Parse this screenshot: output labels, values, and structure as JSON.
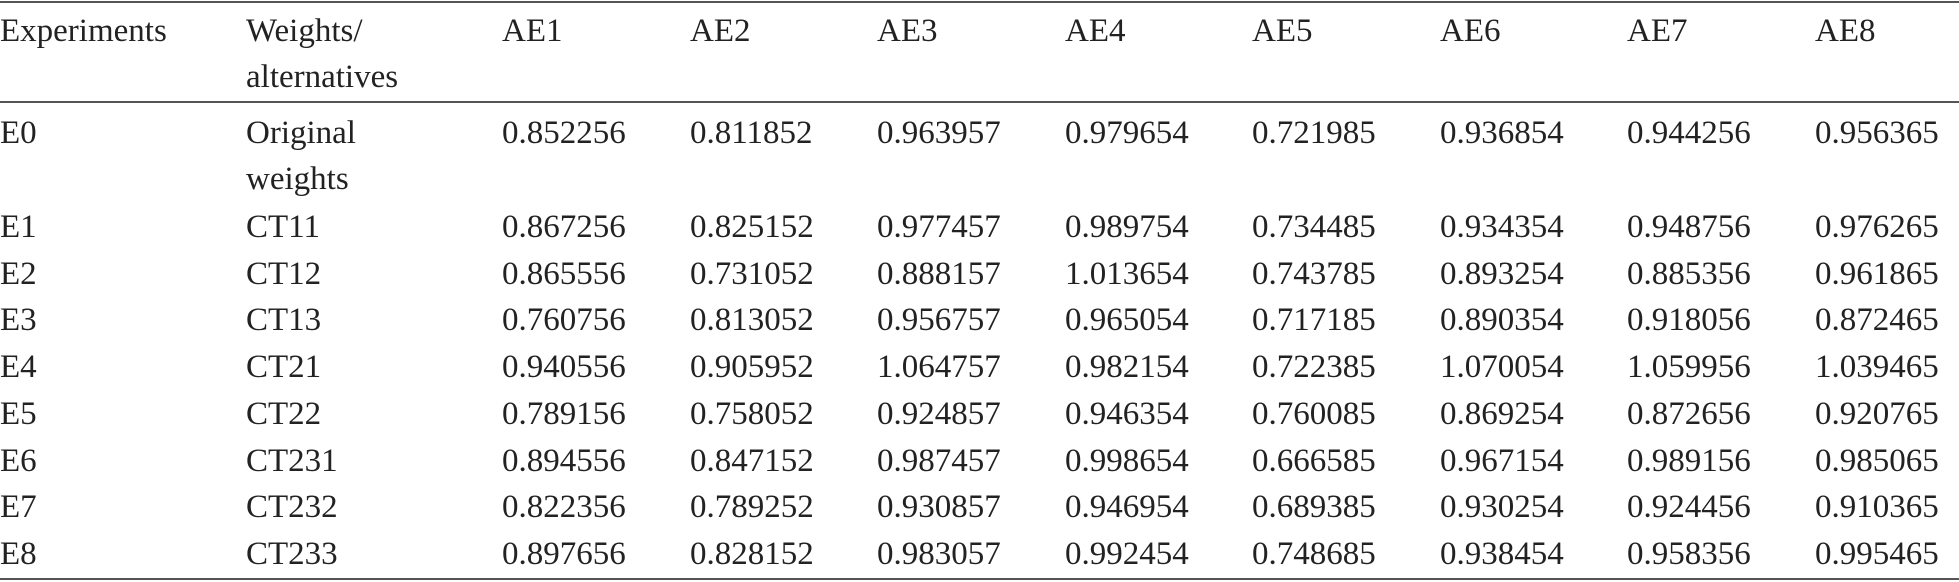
{
  "table": {
    "header": [
      "Experiments",
      "Weights/ alternatives",
      "AE1",
      "AE2",
      "AE3",
      "AE4",
      "AE5",
      "AE6",
      "AE7",
      "AE8"
    ],
    "rows": [
      [
        "E0",
        "Original weights",
        "0.852256",
        "0.811852",
        "0.963957",
        "0.979654",
        "0.721985",
        "0.936854",
        "0.944256",
        "0.956365"
      ],
      [
        "E1",
        "CT11",
        "0.867256",
        "0.825152",
        "0.977457",
        "0.989754",
        "0.734485",
        "0.934354",
        "0.948756",
        "0.976265"
      ],
      [
        "E2",
        "CT12",
        "0.865556",
        "0.731052",
        "0.888157",
        "1.013654",
        "0.743785",
        "0.893254",
        "0.885356",
        "0.961865"
      ],
      [
        "E3",
        "CT13",
        "0.760756",
        "0.813052",
        "0.956757",
        "0.965054",
        "0.717185",
        "0.890354",
        "0.918056",
        "0.872465"
      ],
      [
        "E4",
        "CT21",
        "0.940556",
        "0.905952",
        "1.064757",
        "0.982154",
        "0.722385",
        "1.070054",
        "1.059956",
        "1.039465"
      ],
      [
        "E5",
        "CT22",
        "0.789156",
        "0.758052",
        "0.924857",
        "0.946354",
        "0.760085",
        "0.869254",
        "0.872656",
        "0.920765"
      ],
      [
        "E6",
        "CT231",
        "0.894556",
        "0.847152",
        "0.987457",
        "0.998654",
        "0.666585",
        "0.967154",
        "0.989156",
        "0.985065"
      ],
      [
        "E7",
        "CT232",
        "0.822356",
        "0.789252",
        "0.930857",
        "0.946954",
        "0.689385",
        "0.930254",
        "0.924456",
        "0.910365"
      ],
      [
        "E8",
        "CT233",
        "0.897656",
        "0.828152",
        "0.983057",
        "0.992454",
        "0.748685",
        "0.938454",
        "0.958356",
        "0.995465"
      ]
    ]
  }
}
